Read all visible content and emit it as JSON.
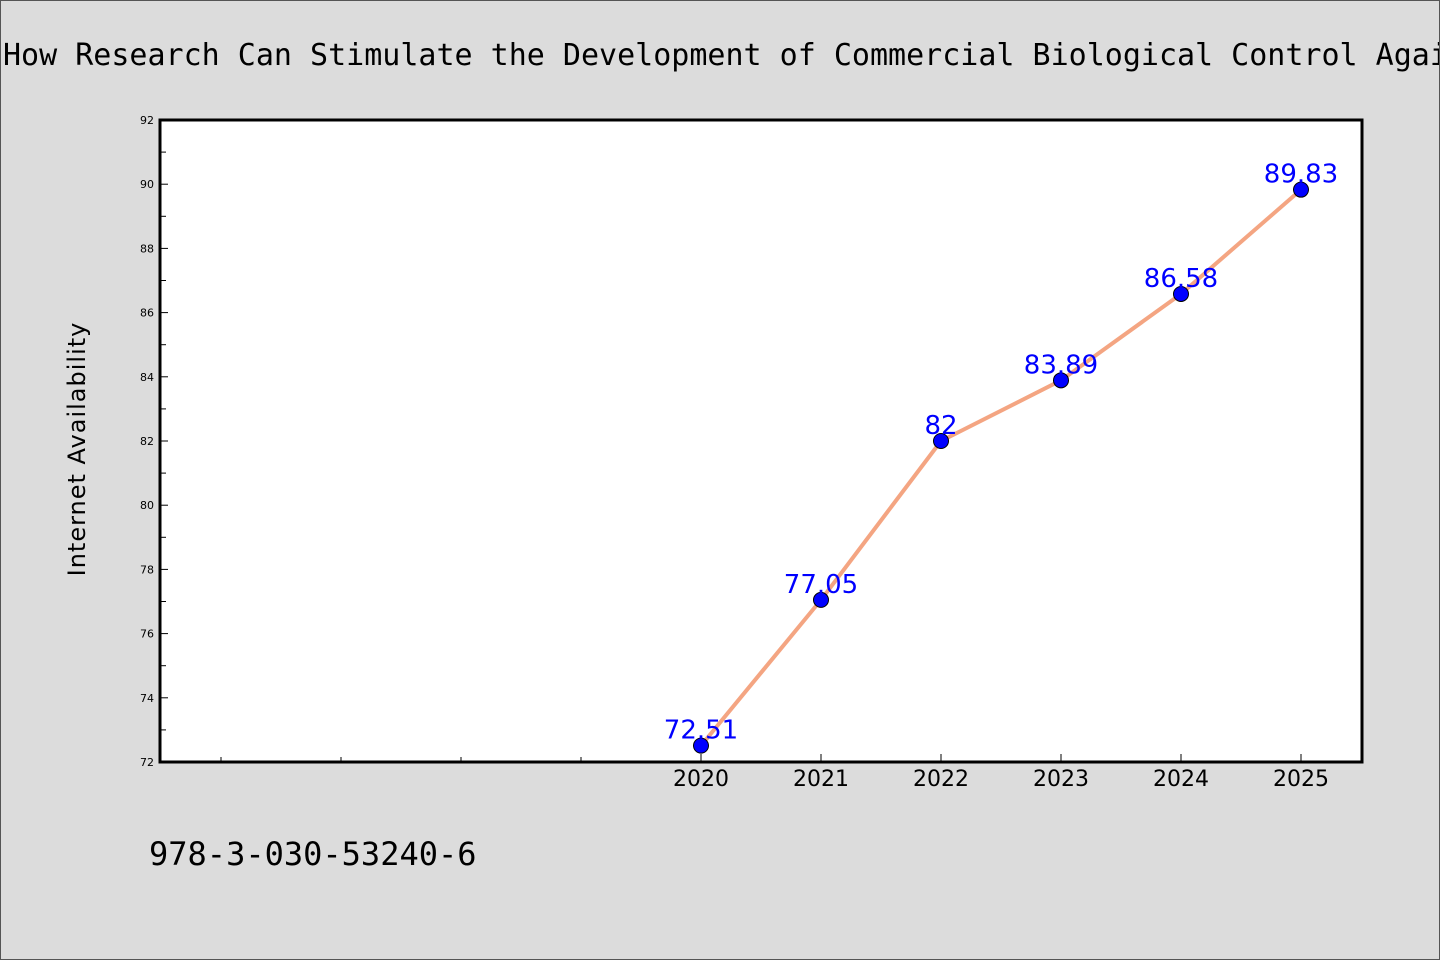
{
  "footer": {
    "isbn": "978-3-030-53240-6"
  },
  "colors": {
    "background": "#dcdcdc",
    "plot_background": "#ffffff",
    "line": "#f4a582",
    "marker": "#0000ff",
    "data_label": "#0000ff"
  },
  "chart_data": {
    "type": "line",
    "title": "How Research Can Stimulate the Development of Commercial Biological Control Agai",
    "xlabel": "",
    "ylabel": "Internet Availability",
    "categories": [
      "2020",
      "2021",
      "2022",
      "2023",
      "2024",
      "2025"
    ],
    "x_slots": 10,
    "first_category_slot": 4,
    "series": [
      {
        "values": [
          72.51,
          77.05,
          82,
          83.89,
          86.58,
          89.83
        ],
        "labels": [
          "72.51",
          "77.05",
          "82",
          "83.89",
          "86.58",
          "89.83"
        ]
      }
    ],
    "ylim": [
      72,
      92
    ],
    "yticks": [
      72,
      74,
      76,
      78,
      80,
      82,
      84,
      86,
      88,
      90,
      92
    ],
    "grid": false,
    "legend": "none"
  }
}
